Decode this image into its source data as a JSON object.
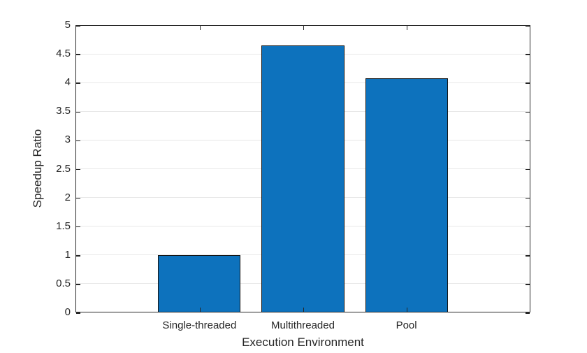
{
  "figure": {
    "background": "#ffffff",
    "axis_color": "#262626",
    "grid_color": "#e8e8e8",
    "text_color": "#262626"
  },
  "chart_data": {
    "type": "bar",
    "title": "",
    "categories": [
      "Single-threaded",
      "Multithreaded",
      "Pool"
    ],
    "values": [
      1.0,
      4.65,
      4.07
    ],
    "xlabel": "Execution Environment",
    "ylabel": "Speedup Ratio",
    "ylim": [
      0,
      5
    ],
    "ytick_step": 0.5,
    "ytick_labels": [
      "0",
      "0.5",
      "1",
      "1.5",
      "2",
      "2.5",
      "3",
      "3.5",
      "4",
      "4.5",
      "5"
    ],
    "grid": "horizontal",
    "legend": "none",
    "bar_face_color": "#0d72bd",
    "bar_edge_color": "#141414"
  }
}
